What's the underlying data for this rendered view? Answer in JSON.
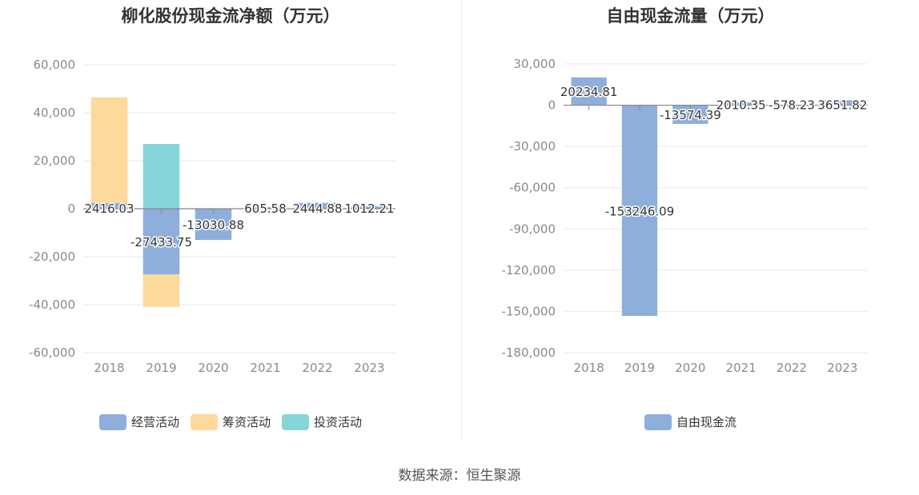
{
  "chart_data": [
    {
      "type": "bar",
      "stacked": true,
      "title": "柳化股份现金流净额（万元）",
      "categories": [
        "2018",
        "2019",
        "2020",
        "2021",
        "2022",
        "2023"
      ],
      "ylim": [
        -60000,
        60000
      ],
      "yticks": [
        60000,
        40000,
        20000,
        0,
        -20000,
        -40000,
        -60000
      ],
      "ytick_labels": [
        "60,000",
        "40,000",
        "20,000",
        "0",
        "-20,000",
        "-40,000",
        "-60,000"
      ],
      "grid": true,
      "legend_position": "bottom",
      "series": [
        {
          "name": "经营活动",
          "color": "#8eaedb",
          "values": [
            2416.03,
            -27433.75,
            -13030.88,
            605.58,
            2444.88,
            1012.21
          ]
        },
        {
          "name": "筹资活动",
          "color": "#fed99c",
          "values": [
            44000,
            -13500,
            0,
            0,
            0,
            0
          ]
        },
        {
          "name": "投资活动",
          "color": "#86d6d9",
          "values": [
            0,
            27000,
            0,
            0,
            0,
            0
          ]
        }
      ],
      "data_labels": [
        "2416.03",
        "-27433.75",
        "-13030.88",
        "605.58",
        "2444.88",
        "1012.21"
      ]
    },
    {
      "type": "bar",
      "title": "自由现金流量（万元）",
      "categories": [
        "2018",
        "2019",
        "2020",
        "2021",
        "2022",
        "2023"
      ],
      "ylim": [
        -180000,
        30000
      ],
      "yticks": [
        30000,
        0,
        -30000,
        -60000,
        -90000,
        -120000,
        -150000,
        -180000
      ],
      "ytick_labels": [
        "30,000",
        "0",
        "-30,000",
        "-60,000",
        "-90,000",
        "-120,000",
        "-150,000",
        "-180,000"
      ],
      "grid": true,
      "legend_position": "bottom",
      "series": [
        {
          "name": "自由现金流",
          "color": "#8eaedb",
          "values": [
            20234.81,
            -153246.09,
            -13574.39,
            2010.35,
            -578.23,
            3651.82
          ]
        }
      ],
      "data_labels": [
        "20234.81",
        "-153246.09",
        "-13574.39",
        "2010.35",
        "-578.23",
        "3651.82"
      ]
    }
  ],
  "footer": {
    "source": "数据来源：恒生聚源"
  }
}
